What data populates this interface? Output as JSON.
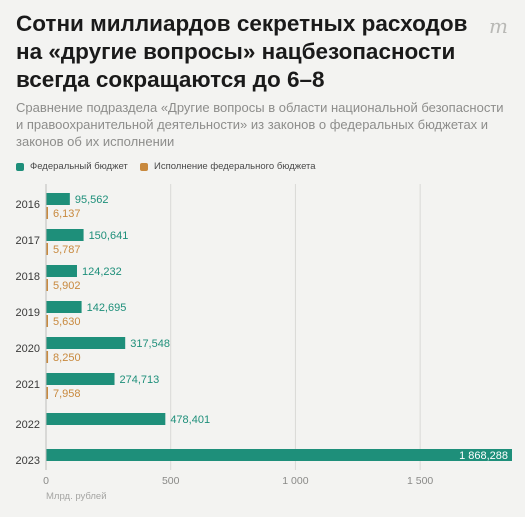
{
  "title": "Сотни миллиардов секретных расходов на «другие вопросы» нацбезопасности всегда сокращаются до 6–8",
  "subtitle": "Сравнение подраздела  «Другие вопросы в области национальной безопасности и правоохранительной деятельности» из законов о федеральных бюджетах и законов об их исполнении",
  "logo": "m",
  "colors": {
    "budget": "#1e8f7a",
    "execution": "#c8893e",
    "grid": "#d9d9d6",
    "background": "#f3f3f1"
  },
  "legend": [
    {
      "label": "Федеральный бюджет",
      "color": "#1e8f7a"
    },
    {
      "label": "Исполнение федерального бюджета",
      "color": "#c8893e"
    }
  ],
  "chart_data": {
    "type": "bar",
    "orientation": "horizontal",
    "categories": [
      "2016",
      "2017",
      "2018",
      "2019",
      "2020",
      "2021",
      "2022",
      "2023"
    ],
    "series": [
      {
        "name": "Федеральный бюджет",
        "values": [
          95.562,
          150.641,
          124.232,
          142.695,
          317.548,
          274.713,
          478.401,
          1868.288
        ],
        "labels": [
          "95,562",
          "150,641",
          "124,232",
          "142,695",
          "317,548",
          "274,713",
          "478,401",
          "1 868,288"
        ]
      },
      {
        "name": "Исполнение федерального бюджета",
        "values": [
          6.137,
          5.787,
          5.902,
          5.63,
          8.25,
          7.958,
          null,
          null
        ],
        "labels": [
          "6,137",
          "5,787",
          "5,902",
          "5,630",
          "8,250",
          "7,958",
          "",
          ""
        ]
      }
    ],
    "xlabel": "Млрд. рублей",
    "xlim": [
      0,
      1868.288
    ],
    "xticks": [
      0,
      500,
      1000,
      1500
    ],
    "xtick_labels": [
      "0",
      "500",
      "1 000",
      "1 500"
    ],
    "grid": true,
    "legend_position": "top-left"
  }
}
